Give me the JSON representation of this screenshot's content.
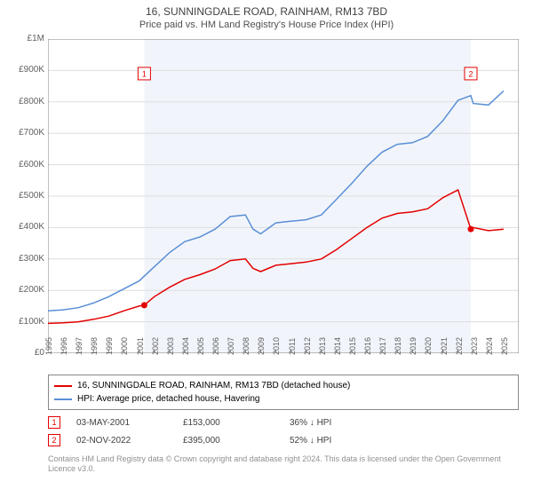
{
  "title": "16, SUNNINGDALE ROAD, RAINHAM, RM13 7BD",
  "subtitle": "Price paid vs. HM Land Registry's House Price Index (HPI)",
  "chart": {
    "type": "line",
    "background_color": "#ffffff",
    "shade_color": "#f1f5fb",
    "shade_x_start": 2001.34,
    "shade_x_end": 2022.84,
    "grid_color": "#dddddd",
    "axis_color": "#808080",
    "xlim": [
      1995,
      2026
    ],
    "ylim": [
      0,
      1000000
    ],
    "x_ticks": [
      1995,
      1996,
      1997,
      1998,
      1999,
      2000,
      2001,
      2002,
      2003,
      2004,
      2005,
      2006,
      2007,
      2008,
      2009,
      2010,
      2011,
      2012,
      2013,
      2014,
      2015,
      2016,
      2017,
      2018,
      2019,
      2020,
      2021,
      2022,
      2023,
      2024,
      2025
    ],
    "y_ticks": [
      0,
      100000,
      200000,
      300000,
      400000,
      500000,
      600000,
      700000,
      800000,
      900000,
      1000000
    ],
    "y_tick_labels": [
      "£0",
      "£100K",
      "£200K",
      "£300K",
      "£400K",
      "£500K",
      "£600K",
      "£700K",
      "£800K",
      "£900K",
      "£1M"
    ],
    "x_label_fontsize": 9,
    "y_label_fontsize": 10,
    "series": [
      {
        "name": "red",
        "label": "16, SUNNINGDALE ROAD, RAINHAM, RM13 7BD (detached house)",
        "color": "#e40000",
        "line_width": 1.5,
        "data": [
          [
            1995,
            95000
          ],
          [
            1996,
            97000
          ],
          [
            1997,
            100000
          ],
          [
            1998,
            108000
          ],
          [
            1999,
            118000
          ],
          [
            2000,
            135000
          ],
          [
            2001,
            150000
          ],
          [
            2001.34,
            153000
          ],
          [
            2002,
            180000
          ],
          [
            2003,
            210000
          ],
          [
            2004,
            235000
          ],
          [
            2005,
            250000
          ],
          [
            2006,
            268000
          ],
          [
            2007,
            295000
          ],
          [
            2008,
            300000
          ],
          [
            2008.5,
            270000
          ],
          [
            2009,
            260000
          ],
          [
            2010,
            280000
          ],
          [
            2011,
            285000
          ],
          [
            2012,
            290000
          ],
          [
            2013,
            300000
          ],
          [
            2014,
            330000
          ],
          [
            2015,
            365000
          ],
          [
            2016,
            400000
          ],
          [
            2017,
            430000
          ],
          [
            2018,
            445000
          ],
          [
            2019,
            450000
          ],
          [
            2020,
            460000
          ],
          [
            2021,
            495000
          ],
          [
            2022,
            520000
          ],
          [
            2022.84,
            395000
          ],
          [
            2023,
            400000
          ],
          [
            2024,
            390000
          ],
          [
            2025,
            395000
          ]
        ]
      },
      {
        "name": "blue",
        "label": "HPI: Average price, detached house, Havering",
        "color": "#5b8fd6",
        "line_width": 1.5,
        "data": [
          [
            1995,
            135000
          ],
          [
            1996,
            138000
          ],
          [
            1997,
            145000
          ],
          [
            1998,
            160000
          ],
          [
            1999,
            180000
          ],
          [
            2000,
            205000
          ],
          [
            2001,
            230000
          ],
          [
            2002,
            275000
          ],
          [
            2003,
            320000
          ],
          [
            2004,
            355000
          ],
          [
            2005,
            370000
          ],
          [
            2006,
            395000
          ],
          [
            2007,
            435000
          ],
          [
            2008,
            440000
          ],
          [
            2008.5,
            395000
          ],
          [
            2009,
            380000
          ],
          [
            2010,
            415000
          ],
          [
            2011,
            420000
          ],
          [
            2012,
            425000
          ],
          [
            2013,
            440000
          ],
          [
            2014,
            490000
          ],
          [
            2015,
            540000
          ],
          [
            2016,
            595000
          ],
          [
            2017,
            640000
          ],
          [
            2018,
            665000
          ],
          [
            2019,
            670000
          ],
          [
            2020,
            690000
          ],
          [
            2021,
            740000
          ],
          [
            2022,
            805000
          ],
          [
            2022.84,
            820000
          ],
          [
            2023,
            795000
          ],
          [
            2024,
            790000
          ],
          [
            2025,
            835000
          ]
        ]
      }
    ],
    "markers": [
      {
        "n": "1",
        "x": 2001.34,
        "y": 153000,
        "color": "#e40000",
        "box_y": 890000
      },
      {
        "n": "2",
        "x": 2022.84,
        "y": 395000,
        "color": "#e40000",
        "box_y": 890000
      }
    ]
  },
  "legend": {
    "border_color": "#888888",
    "rows": [
      {
        "color": "#e40000",
        "label": "16, SUNNINGDALE ROAD, RAINHAM, RM13 7BD (detached house)"
      },
      {
        "color": "#5b8fd6",
        "label": "HPI: Average price, detached house, Havering"
      }
    ]
  },
  "sales": [
    {
      "n": "1",
      "color": "#e40000",
      "date": "03-MAY-2001",
      "price": "£153,000",
      "diff": "36% ↓ HPI"
    },
    {
      "n": "2",
      "color": "#e40000",
      "date": "02-NOV-2022",
      "price": "£395,000",
      "diff": "52% ↓ HPI"
    }
  ],
  "copyright": "Contains HM Land Registry data © Crown copyright and database right 2024. This data is licensed under the Open Government Licence v3.0."
}
